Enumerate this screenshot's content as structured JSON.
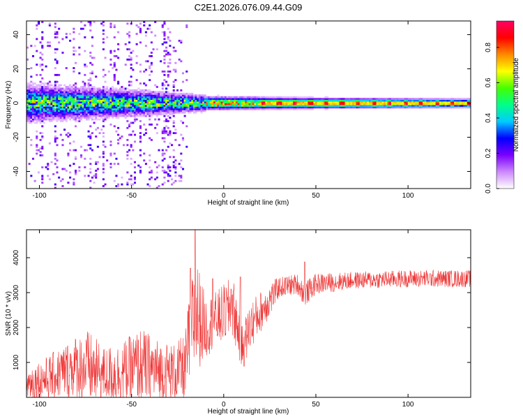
{
  "title": "C2E1.2026.076.09.44.G09",
  "chart_data": [
    {
      "type": "heatmap",
      "xlabel": "Height of straight line (km)",
      "ylabel": "Frequency (Hz)",
      "xlim": [
        -107,
        134
      ],
      "ylim": [
        -50,
        48
      ],
      "xticks": [
        -100,
        -50,
        0,
        50,
        100
      ],
      "xtick_labels": [
        "-100",
        "-50",
        "0",
        "50",
        "100"
      ],
      "yticks": [
        -40,
        -20,
        0,
        20,
        40
      ],
      "ytick_labels": [
        "-40",
        "-20",
        "0",
        "20",
        "40"
      ],
      "colorbar": {
        "label": "Normalized spectral amplitude",
        "range": [
          0,
          0.95
        ],
        "ticks": [
          0.0,
          0.2,
          0.4,
          0.6,
          0.8
        ],
        "tick_labels": [
          "0.0",
          "0.2",
          "0.4",
          "0.6",
          "0.8"
        ],
        "colormap": [
          "#ffffff",
          "#cc88ff",
          "#7a00ff",
          "#0000ff",
          "#00ccff",
          "#00ff88",
          "#44ff00",
          "#ffff00",
          "#ff8800",
          "#ff0000",
          "#ff0066"
        ]
      },
      "features": {
        "band_center_hz": 0,
        "band_halfwidth_hz": [
          {
            "x": -107,
            "hw": 7
          },
          {
            "x": -50,
            "hw": 5
          },
          {
            "x": -10,
            "hw": 3
          },
          {
            "x": 134,
            "hw": 2
          }
        ],
        "dominant_peak_hz": 0,
        "scatter_noise_region_km": [
          -107,
          -20
        ]
      }
    },
    {
      "type": "line",
      "xlabel": "Height of straight line (km)",
      "ylabel": "SNR (10 * v/v)",
      "xlim": [
        -107,
        134
      ],
      "ylim": [
        0,
        4800
      ],
      "xticks": [
        -100,
        -50,
        0,
        50,
        100
      ],
      "xtick_labels": [
        "-100",
        "-50",
        "0",
        "50",
        "100"
      ],
      "yticks": [
        1000,
        2000,
        3000,
        4000
      ],
      "ytick_labels": [
        "1000",
        "2000",
        "3000",
        "4000"
      ],
      "series": [
        {
          "name": "SNR",
          "color": "#ee3333",
          "envelope": [
            {
              "x": -107,
              "mean": 400,
              "spread": 500
            },
            {
              "x": -95,
              "mean": 550,
              "spread": 650
            },
            {
              "x": -80,
              "mean": 900,
              "spread": 900
            },
            {
              "x": -74,
              "mean": 850,
              "spread": 1100
            },
            {
              "x": -65,
              "mean": 650,
              "spread": 800
            },
            {
              "x": -55,
              "mean": 700,
              "spread": 900
            },
            {
              "x": -45,
              "mean": 900,
              "spread": 1100
            },
            {
              "x": -35,
              "mean": 750,
              "spread": 900
            },
            {
              "x": -27,
              "mean": 700,
              "spread": 850
            },
            {
              "x": -21,
              "mean": 800,
              "spread": 1000
            },
            {
              "x": -18,
              "mean": 1900,
              "spread": 1500
            },
            {
              "x": -15,
              "mean": 2400,
              "spread": 1700
            },
            {
              "x": -10,
              "mean": 2000,
              "spread": 900
            },
            {
              "x": -5,
              "mean": 2200,
              "spread": 800
            },
            {
              "x": 5,
              "mean": 2600,
              "spread": 900
            },
            {
              "x": 10,
              "mean": 1400,
              "spread": 700
            },
            {
              "x": 15,
              "mean": 2100,
              "spread": 700
            },
            {
              "x": 25,
              "mean": 2800,
              "spread": 500
            },
            {
              "x": 30,
              "mean": 3150,
              "spread": 300
            },
            {
              "x": 40,
              "mean": 3250,
              "spread": 300
            },
            {
              "x": 44,
              "mean": 2950,
              "spread": 350
            },
            {
              "x": 50,
              "mean": 3250,
              "spread": 300
            },
            {
              "x": 70,
              "mean": 3350,
              "spread": 250
            },
            {
              "x": 100,
              "mean": 3400,
              "spread": 250
            },
            {
              "x": 134,
              "mean": 3400,
              "spread": 250
            }
          ],
          "spikes": [
            {
              "x": -15.5,
              "value": 4800
            },
            {
              "x": -18.0,
              "value": 3700
            },
            {
              "x": -6.0,
              "value": 3400
            },
            {
              "x": 4.0,
              "value": 3100
            },
            {
              "x": 9.0,
              "value": 3450
            },
            {
              "x": 44.0,
              "value": 3880
            }
          ]
        }
      ]
    }
  ]
}
